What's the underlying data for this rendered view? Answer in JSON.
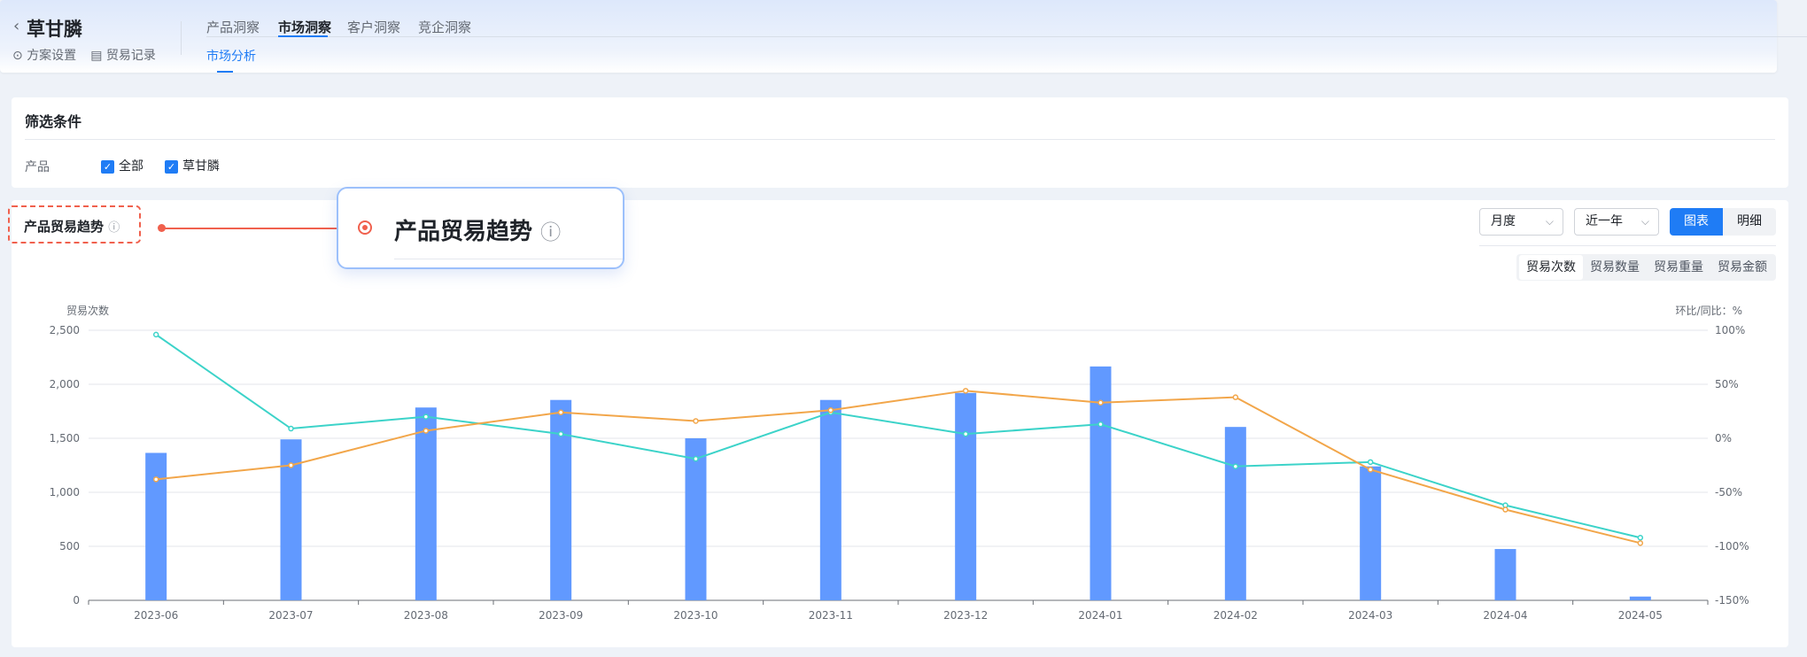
{
  "header": {
    "back_icon": "chevron-left-icon",
    "title": "草甘膦",
    "links": [
      {
        "icon": "settings-circle-icon",
        "label": "方案设置"
      },
      {
        "icon": "document-icon",
        "label": "贸易记录"
      }
    ],
    "tabs": [
      {
        "label": "产品洞察",
        "active": false
      },
      {
        "label": "市场洞察",
        "active": true
      },
      {
        "label": "客户洞察",
        "active": false
      },
      {
        "label": "竞企洞察",
        "active": false
      }
    ],
    "sub_tabs": [
      {
        "label": "市场分析",
        "active": true
      }
    ]
  },
  "filter": {
    "title": "筛选条件",
    "row_label": "产品",
    "options": [
      {
        "label": "全部",
        "checked": true
      },
      {
        "label": "草甘膦",
        "checked": true
      }
    ]
  },
  "chart_card": {
    "title": "产品贸易趋势",
    "info_icon": "info-circle-icon",
    "callout_title": "产品贸易趋势",
    "period_select": "月度",
    "range_select": "近一年",
    "view_toggle": [
      {
        "label": "图表",
        "active": true
      },
      {
        "label": "明细",
        "active": false
      }
    ],
    "metric_tabs": [
      {
        "label": "贸易次数",
        "active": true
      },
      {
        "label": "贸易数量",
        "active": false
      },
      {
        "label": "贸易重量",
        "active": false
      },
      {
        "label": "贸易金额",
        "active": false
      }
    ]
  },
  "colors": {
    "primary": "#1f7cf5",
    "bar": "#6199ff",
    "line_teal": "#3cd3c9",
    "line_orange": "#f2a64a",
    "highlight": "#f0604d"
  },
  "chart_data": {
    "type": "bar+line",
    "categories": [
      "2023-06",
      "2023-07",
      "2023-08",
      "2023-09",
      "2023-10",
      "2023-11",
      "2023-12",
      "2024-01",
      "2024-02",
      "2024-03",
      "2024-04",
      "2024-05"
    ],
    "ylabel": "贸易次数",
    "y2label": "环比/同比：%",
    "ylim": [
      0,
      2500
    ],
    "y2lim": [
      -150,
      100
    ],
    "yticks": [
      "0",
      "500",
      "1,000",
      "1,500",
      "2,000",
      "2,500"
    ],
    "y2ticks": [
      "-150%",
      "-100%",
      "-50%",
      "0%",
      "50%",
      "100%"
    ],
    "grid": true,
    "series": [
      {
        "type": "bar",
        "axis": "left",
        "color": "#6199ff",
        "values": [
          1365,
          1490,
          1785,
          1855,
          1500,
          1855,
          1920,
          2165,
          1605,
          1240,
          475,
          35
        ]
      },
      {
        "type": "line",
        "axis": "right",
        "color": "#3cd3c9",
        "values": [
          96,
          9,
          20,
          4,
          -19,
          24,
          4,
          13,
          -26,
          -22,
          -62,
          -92
        ]
      },
      {
        "type": "line",
        "axis": "right",
        "color": "#f2a64a",
        "values": [
          -38,
          -25,
          7,
          24,
          16,
          26,
          44,
          33,
          38,
          -29,
          -66,
          -97
        ]
      }
    ]
  }
}
